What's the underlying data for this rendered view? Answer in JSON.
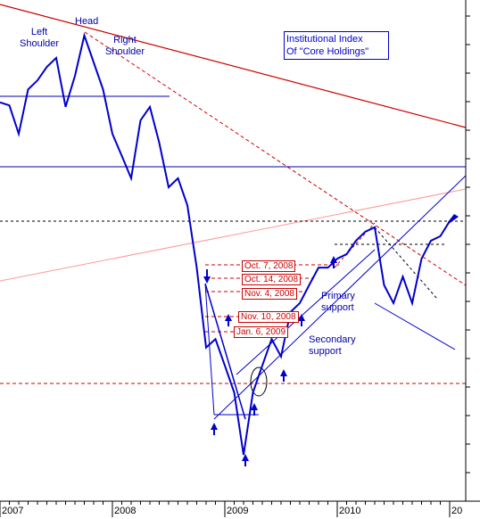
{
  "chart_data": {
    "type": "line",
    "categories": [
      "2007",
      null,
      null,
      null,
      null,
      null,
      null,
      null,
      null,
      null,
      null,
      null,
      "2008",
      null,
      null,
      null,
      null,
      null,
      null,
      null,
      null,
      null,
      null,
      null,
      "2009",
      null,
      null,
      null,
      null,
      null,
      null,
      null,
      null,
      null,
      null,
      null,
      "2010",
      null,
      null,
      null,
      null,
      null,
      null,
      null,
      null,
      null,
      null,
      null,
      "20"
    ],
    "values": [
      79.5,
      78.9,
      73.2,
      82.1,
      83.9,
      86.6,
      88.4,
      78.6,
      84.8,
      92.9,
      87.5,
      82.1,
      73.2,
      68.8,
      64.3,
      75.9,
      78.6,
      71.4,
      62.5,
      64.3,
      58.9,
      46.4,
      30.4,
      32.1,
      26.8,
      21.4,
      8.9,
      21.4,
      26.8,
      32.1,
      28.6,
      37.5,
      39.3,
      42.9,
      46.4,
      46.4,
      48.2,
      49.1,
      51.8,
      53.6,
      54.5,
      42.9,
      39.3,
      44.6,
      39.3,
      48.2,
      51.8,
      52.7,
      55.7
    ],
    "color": "#0000cc",
    "ylim": [
      0,
      100
    ],
    "annotations": {
      "left_shoulder": "Left\nShoulder",
      "head": "Head",
      "right_shoulder": "Right\nShoulder",
      "index_title": "Institutional Index\nOf  \"Core Holdings\"",
      "dates": [
        "Oct. 7, 2008",
        "Oct. 14, 2008",
        "Nov. 4, 2008",
        "Nov. 10, 2008",
        "Jan. 6, 2009"
      ],
      "primary_support": "Primary\nsupport",
      "secondary_support": "Secondary\nsupport"
    }
  }
}
